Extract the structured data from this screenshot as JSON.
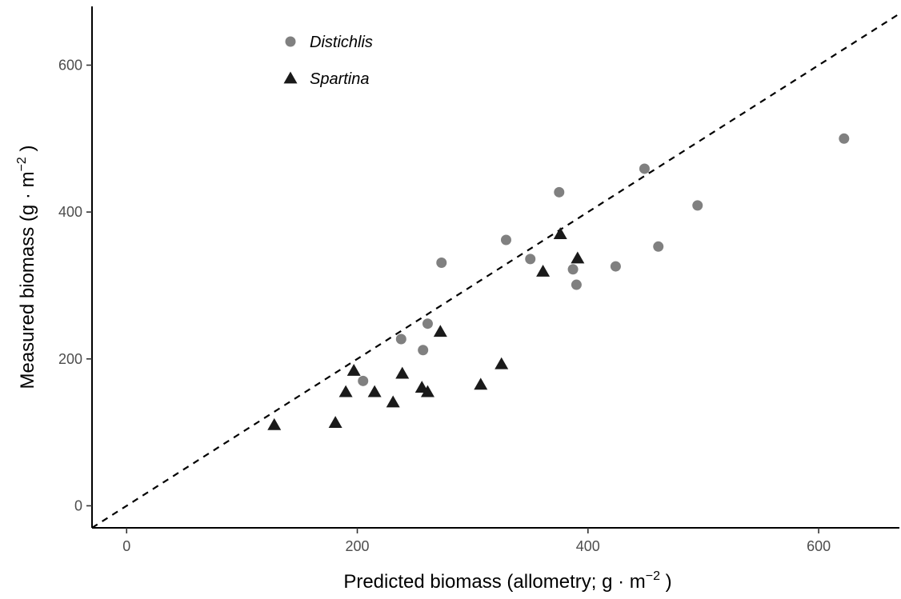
{
  "chart_data": {
    "type": "scatter",
    "xlabel": "Predicted biomass (allometry; g · m",
    "xlabel_sup": "−2",
    "xlabel_end": " )",
    "ylabel": "Measured biomass (g · m",
    "ylabel_sup": "−2",
    "ylabel_end": " )",
    "xlim": [
      -30,
      670
    ],
    "ylim": [
      -30,
      680
    ],
    "x_ticks": [
      0,
      200,
      400,
      600
    ],
    "y_ticks": [
      0,
      200,
      400,
      600
    ],
    "grid": false,
    "legend_position": "top-left",
    "reference_line": {
      "style": "dashed",
      "slope": 1,
      "intercept": 0
    },
    "series": [
      {
        "name": "Distichlis",
        "marker": "circle",
        "color": "#808080",
        "points": [
          [
            205,
            170
          ],
          [
            238,
            227
          ],
          [
            257,
            212
          ],
          [
            261,
            248
          ],
          [
            273,
            331
          ],
          [
            329,
            362
          ],
          [
            350,
            336
          ],
          [
            375,
            427
          ],
          [
            387,
            322
          ],
          [
            390,
            301
          ],
          [
            424,
            326
          ],
          [
            449,
            459
          ],
          [
            461,
            353
          ],
          [
            495,
            409
          ],
          [
            622,
            500
          ]
        ]
      },
      {
        "name": "Spartina",
        "marker": "triangle",
        "color": "#1a1a1a",
        "points": [
          [
            128,
            110
          ],
          [
            181,
            113
          ],
          [
            190,
            155
          ],
          [
            197,
            184
          ],
          [
            215,
            155
          ],
          [
            231,
            141
          ],
          [
            239,
            180
          ],
          [
            256,
            161
          ],
          [
            261,
            155
          ],
          [
            272,
            237
          ],
          [
            307,
            165
          ],
          [
            325,
            193
          ],
          [
            361,
            319
          ],
          [
            376,
            370
          ],
          [
            391,
            337
          ]
        ]
      }
    ]
  }
}
